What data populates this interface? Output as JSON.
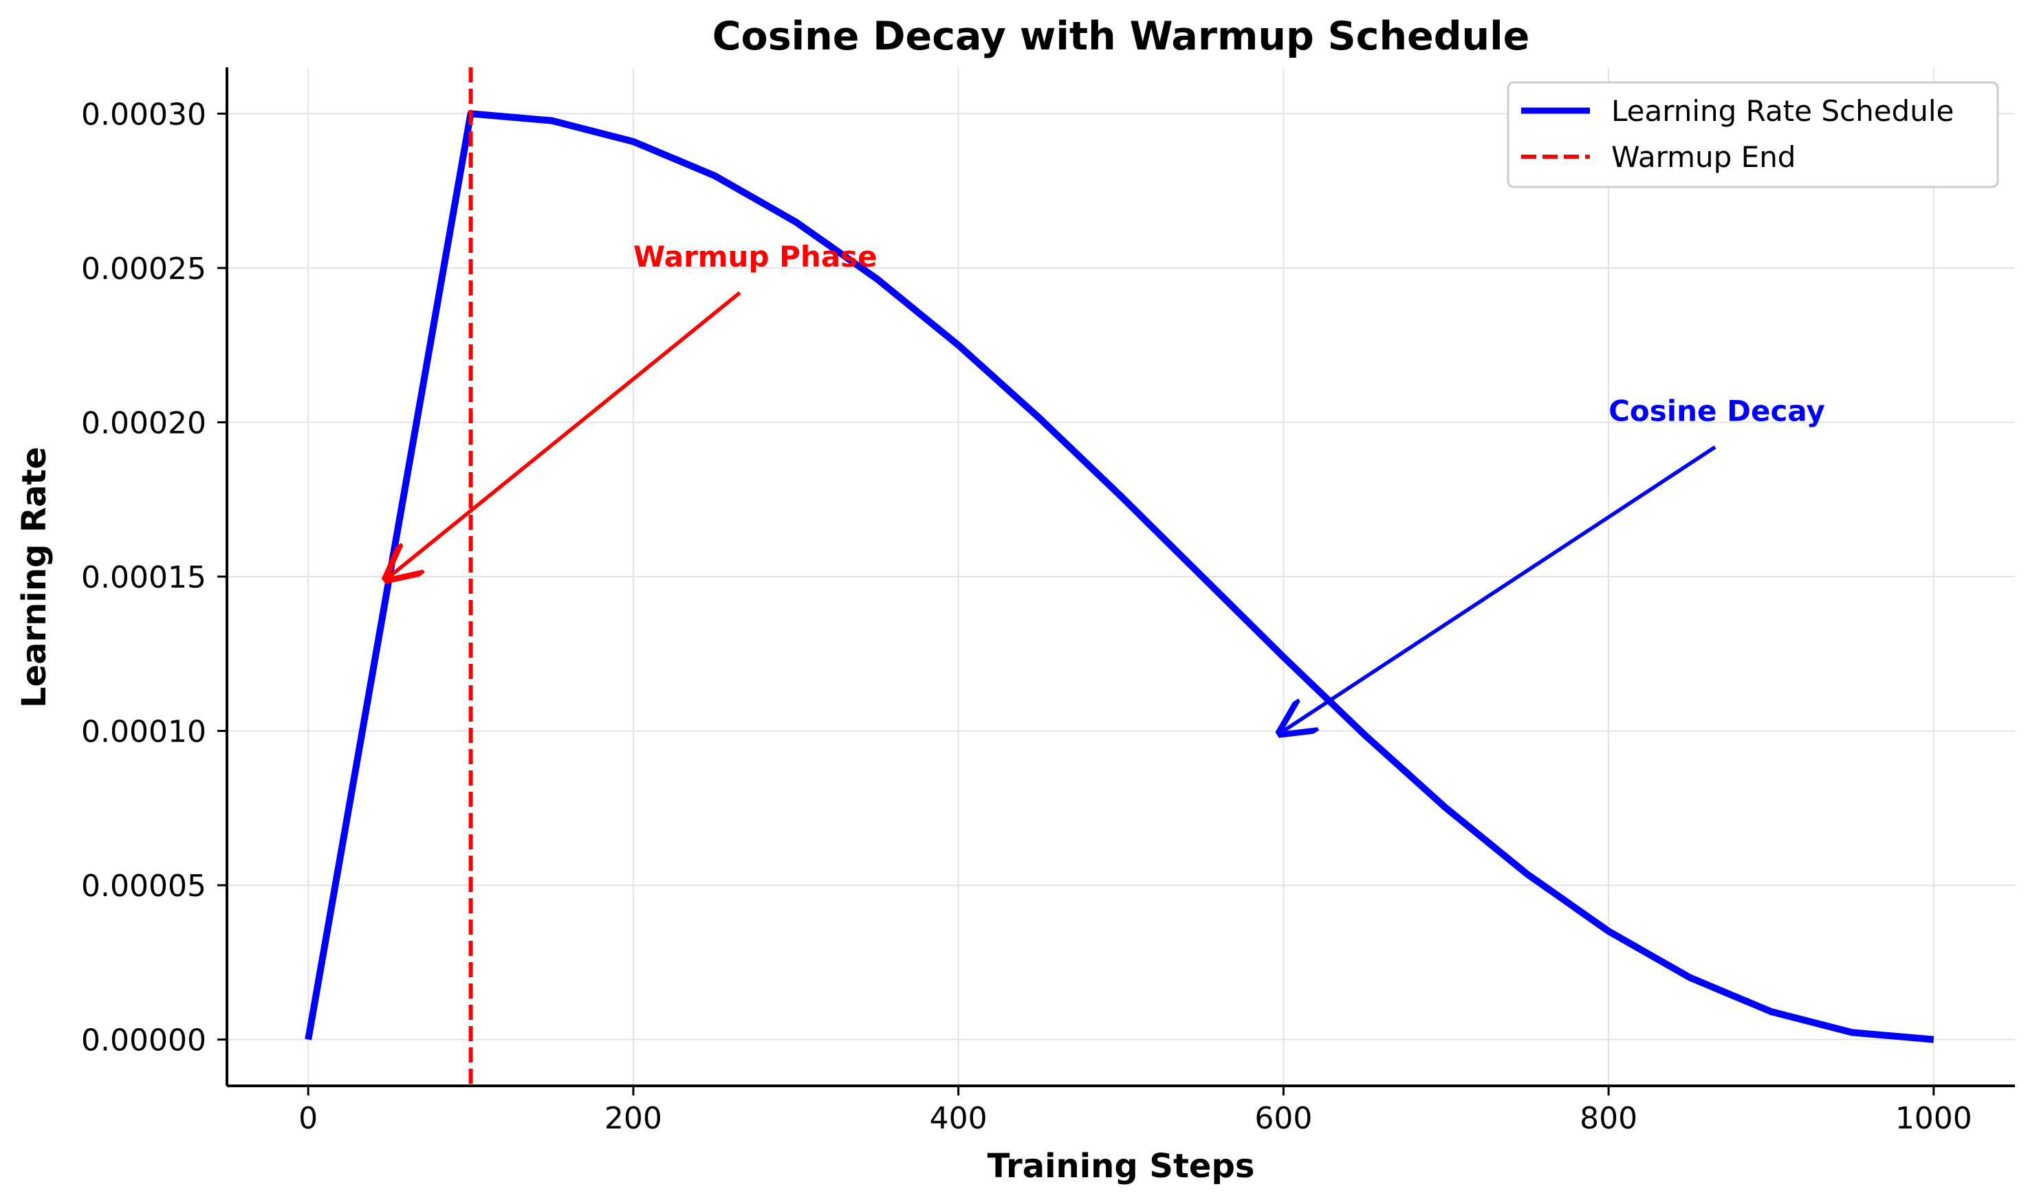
{
  "chart_data": {
    "type": "line",
    "title": "Cosine Decay with Warmup Schedule",
    "xlabel": "Training Steps",
    "ylabel": "Learning Rate",
    "xlim": [
      -50,
      1050
    ],
    "ylim": [
      -1.5e-05,
      0.000315
    ],
    "xticks": [
      0,
      200,
      400,
      600,
      800,
      1000
    ],
    "xtick_labels": [
      "0",
      "200",
      "400",
      "600",
      "800",
      "1000"
    ],
    "yticks": [
      0.0,
      5e-05,
      0.0001,
      0.00015,
      0.0002,
      0.00025,
      0.0003
    ],
    "ytick_labels": [
      "0.00000",
      "0.00005",
      "0.00010",
      "0.00015",
      "0.00020",
      "0.00025",
      "0.00030"
    ],
    "grid": true,
    "legend_position": "top-right",
    "series": [
      {
        "name": "Learning Rate Schedule",
        "color": "#0000ff",
        "style": "solid",
        "x": [
          0,
          100,
          150,
          200,
          250,
          300,
          350,
          400,
          450,
          500,
          550,
          600,
          650,
          700,
          750,
          800,
          850,
          900,
          950,
          1000
        ],
        "y": [
          0.0,
          0.0003,
          0.000297722,
          0.000290954,
          0.000279904,
          0.000264907,
          0.000246418,
          0.000225,
          0.000201303,
          0.000176047,
          0.00015,
          0.000123953,
          9.8697e-05,
          7.5e-05,
          5.3582e-05,
          3.5093e-05,
          2.0096e-05,
          9.046e-06,
          2.278e-06,
          0.0
        ]
      },
      {
        "name": "Warmup End",
        "color": "#ff0000",
        "style": "dashed",
        "vline_x": 100
      }
    ],
    "annotations": [
      {
        "text": "Warmup Phase",
        "color": "#ff0000",
        "text_x": 200,
        "text_y": 0.00025,
        "arrow_x": 50,
        "arrow_y": 0.00015
      },
      {
        "text": "Cosine Decay",
        "color": "#0000ff",
        "text_x": 800,
        "text_y": 0.0002,
        "arrow_x": 600,
        "arrow_y": 0.0001
      }
    ]
  }
}
